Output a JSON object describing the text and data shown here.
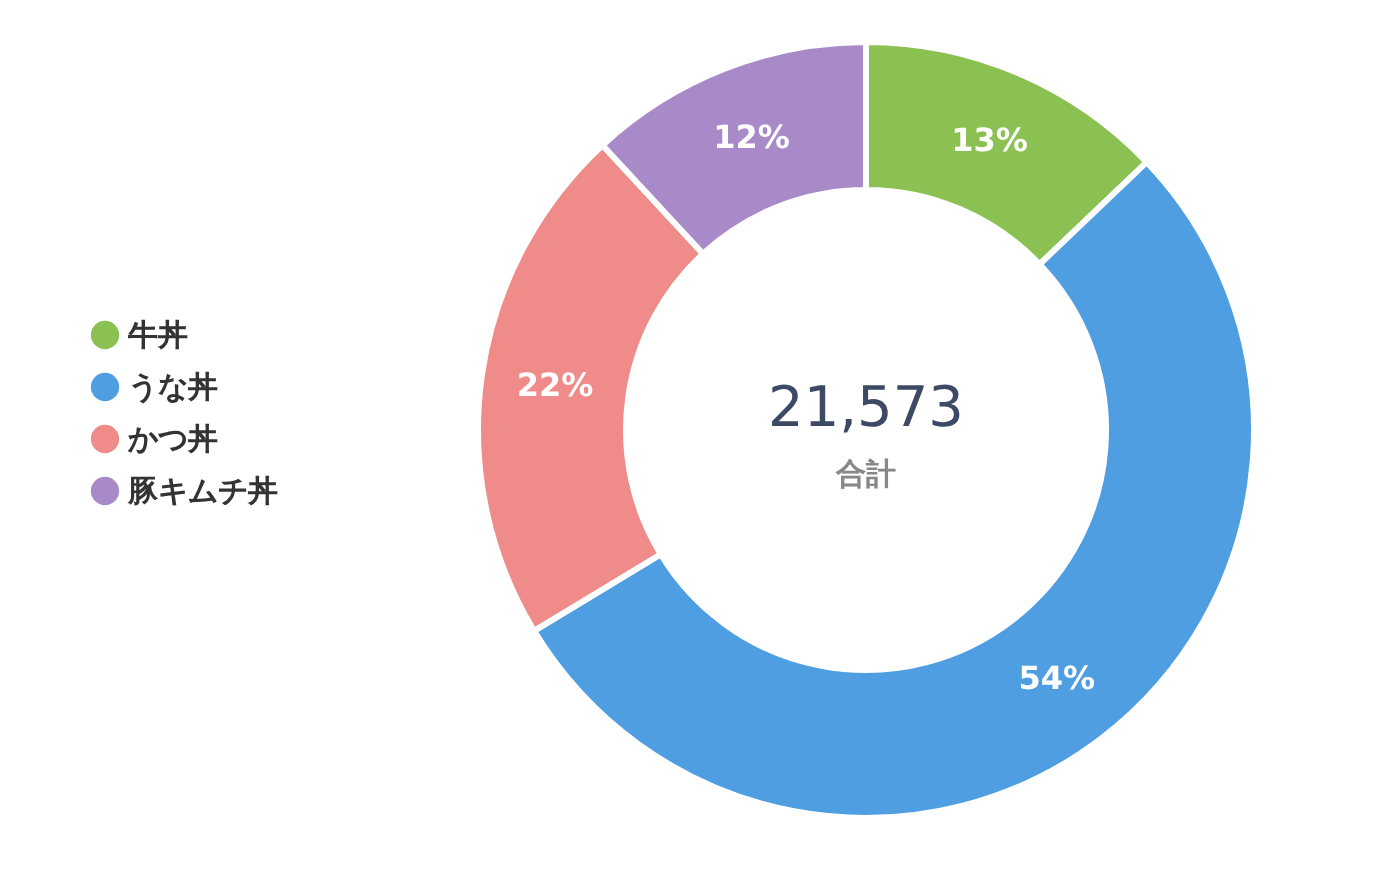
{
  "chart_data": {
    "type": "donut",
    "categories": [
      "牛丼",
      "うな丼",
      "かつ丼",
      "豚キムチ丼"
    ],
    "values": [
      13,
      54,
      22,
      12
    ],
    "colors": [
      "#8bc152",
      "#4f9ee2",
      "#ef8b88",
      "#a98ac9"
    ],
    "value_labels": [
      "13%",
      "54%",
      "22%",
      "12%"
    ],
    "legend": "left",
    "annotations": [
      "21,573",
      "合計"
    ]
  }
}
